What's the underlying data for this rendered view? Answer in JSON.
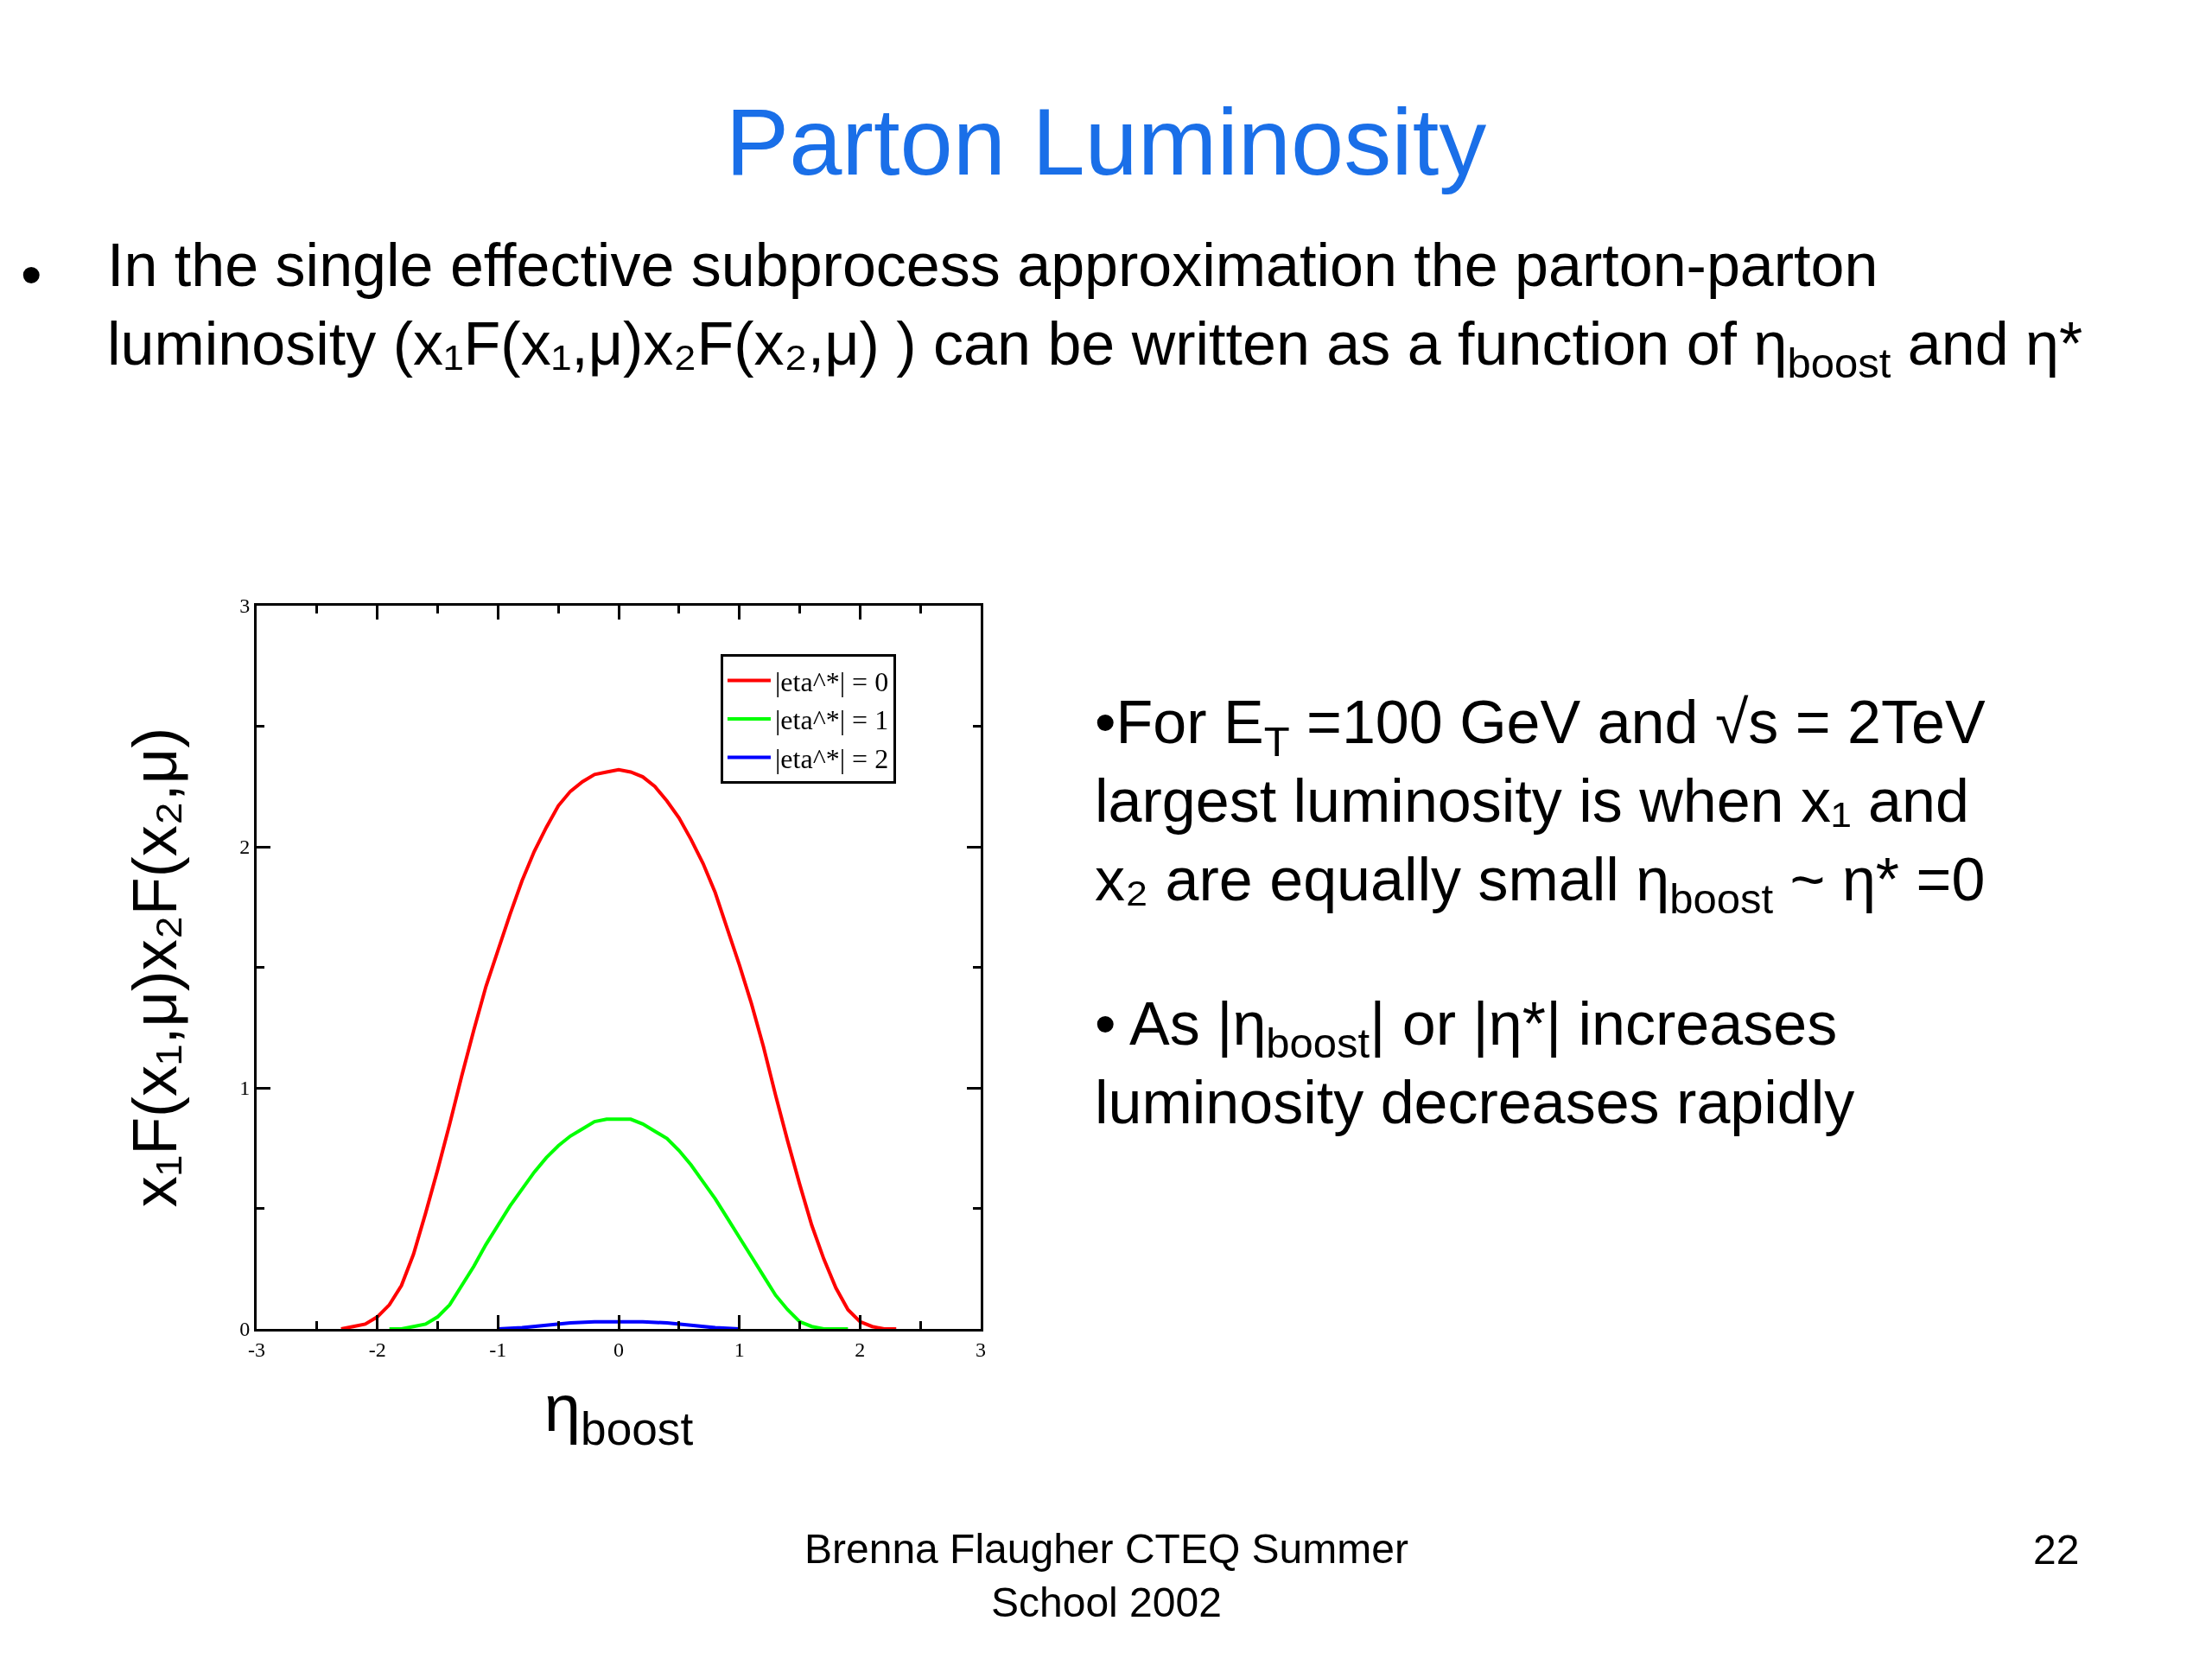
{
  "chart_data": {
    "type": "line",
    "title": "Parton Luminosity",
    "xlabel": "η$_{boost}$",
    "ylabel": "x₁F(x₁,μ)x₂F(x₂,μ)",
    "xlim": [
      -3,
      3
    ],
    "ylim": [
      0,
      3
    ],
    "xticks": [
      -3,
      {
        "value": -2.5,
        "label": null
      },
      -2,
      {
        "value": -1.5,
        "label": null
      },
      -1,
      {
        "value": -0.5,
        "label": null
      },
      0,
      {
        "value": 0.5,
        "label": null
      },
      1,
      {
        "value": 1.5,
        "label": null
      },
      2,
      {
        "value": 2.5,
        "label": null
      },
      3
    ],
    "yticks": [
      0,
      {
        "value": 0.5,
        "label": null
      },
      1,
      {
        "value": 1.5,
        "label": null
      },
      2,
      {
        "value": 2.5,
        "label": null
      },
      3
    ],
    "legend": "top right",
    "series": [
      {
        "name": "|eta^*| = 0",
        "color": "#ff0000",
        "x": [
          -2.3,
          -2.2,
          -2.1,
          -2.0,
          -1.9,
          -1.8,
          -1.7,
          -1.6,
          -1.5,
          -1.4,
          -1.3,
          -1.2,
          -1.1,
          -1.0,
          -0.9,
          -0.8,
          -0.7,
          -0.6,
          -0.5,
          -0.4,
          -0.3,
          -0.2,
          -0.1,
          0.0,
          0.1,
          0.2,
          0.3,
          0.4,
          0.5,
          0.6,
          0.7,
          0.8,
          0.9,
          1.0,
          1.1,
          1.2,
          1.3,
          1.4,
          1.5,
          1.6,
          1.7,
          1.8,
          1.9,
          2.0,
          2.1,
          2.2,
          2.3
        ],
        "values": [
          0,
          0.01,
          0.02,
          0.05,
          0.1,
          0.18,
          0.31,
          0.48,
          0.66,
          0.85,
          1.05,
          1.24,
          1.42,
          1.57,
          1.72,
          1.86,
          1.98,
          2.08,
          2.17,
          2.23,
          2.27,
          2.3,
          2.31,
          2.32,
          2.31,
          2.29,
          2.25,
          2.19,
          2.12,
          2.03,
          1.93,
          1.81,
          1.66,
          1.51,
          1.35,
          1.17,
          0.97,
          0.78,
          0.6,
          0.43,
          0.29,
          0.17,
          0.08,
          0.03,
          0.01,
          0,
          0
        ]
      },
      {
        "name": "|eta^*| = 1",
        "color": "#00ff00",
        "x": [
          -1.9,
          -1.8,
          -1.7,
          -1.6,
          -1.5,
          -1.4,
          -1.3,
          -1.2,
          -1.1,
          -1.0,
          -0.9,
          -0.8,
          -0.7,
          -0.6,
          -0.5,
          -0.4,
          -0.3,
          -0.2,
          -0.1,
          0.0,
          0.1,
          0.2,
          0.3,
          0.4,
          0.5,
          0.6,
          0.7,
          0.8,
          0.9,
          1.0,
          1.1,
          1.2,
          1.3,
          1.4,
          1.5,
          1.6,
          1.7,
          1.8,
          1.9
        ],
        "values": [
          0,
          0,
          0.01,
          0.02,
          0.05,
          0.1,
          0.18,
          0.26,
          0.35,
          0.43,
          0.51,
          0.58,
          0.65,
          0.71,
          0.76,
          0.8,
          0.83,
          0.86,
          0.87,
          0.87,
          0.87,
          0.85,
          0.82,
          0.79,
          0.74,
          0.68,
          0.61,
          0.54,
          0.46,
          0.38,
          0.3,
          0.22,
          0.14,
          0.08,
          0.03,
          0.01,
          0,
          0,
          0
        ]
      },
      {
        "name": "|eta^*| = 2",
        "color": "#0000ff",
        "x": [
          -1.0,
          -0.8,
          -0.6,
          -0.4,
          -0.2,
          0.0,
          0.2,
          0.4,
          0.6,
          0.8,
          1.0
        ],
        "values": [
          0,
          0.005,
          0.015,
          0.025,
          0.03,
          0.03,
          0.03,
          0.025,
          0.015,
          0.005,
          0
        ]
      }
    ],
    "annotations": [
      "•",
      "In the single effective subprocess approximation the parton-parton\nluminosity (x₁F(x₁,μ)x₂F(x₂,μ) ) can be written as a function of η$_{boost}$ and η*",
      "•For E$_{T}$ =100 GeV and √s = 2TeV\nlargest luminosity is when x₁ and\nx₂ are equally small η$_{boost}$ ~ η* =0",
      "• As |η$_{boost}$| or |η*| increases\nluminosity decreases rapidly",
      "Brenna Flaugher CTEQ Summer\nSchool 2002",
      "22"
    ]
  }
}
